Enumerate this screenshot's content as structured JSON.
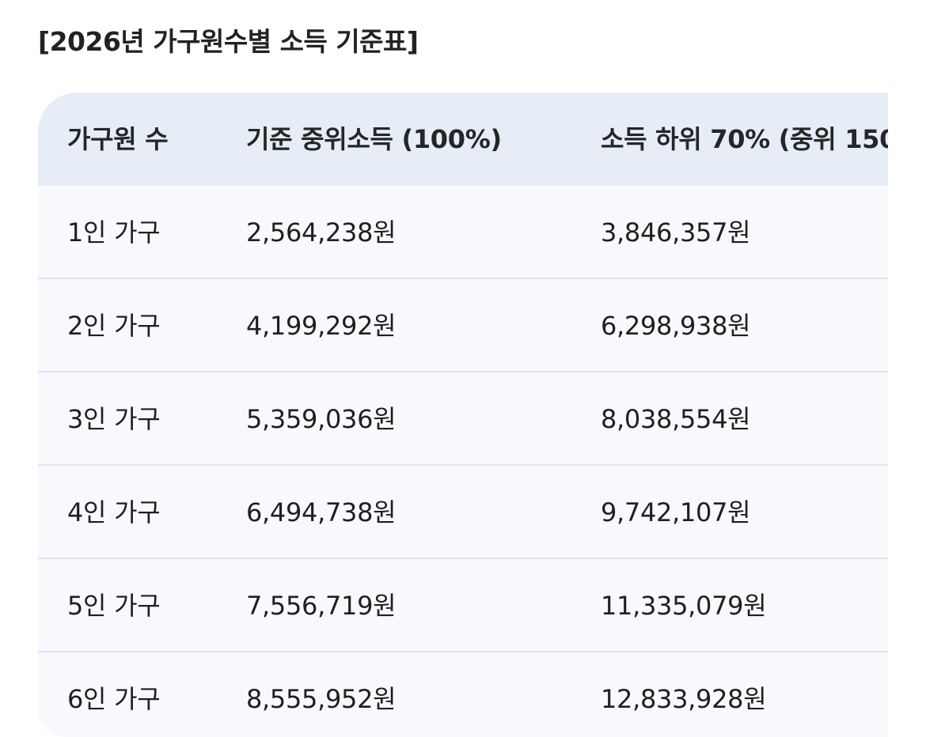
{
  "title": "[2026년 가구원수별 소득 기준표]",
  "table": {
    "headers": [
      "가구원 수",
      "기준 중위소득 (100%)",
      "소득 하위 70% (중위 150"
    ],
    "rows": [
      [
        "1인 가구",
        "2,564,238원",
        "3,846,357원"
      ],
      [
        "2인 가구",
        "4,199,292원",
        "6,298,938원"
      ],
      [
        "3인 가구",
        "5,359,036원",
        "8,038,554원"
      ],
      [
        "4인 가구",
        "6,494,738원",
        "9,742,107원"
      ],
      [
        "5인 가구",
        "7,556,719원",
        "11,335,079원"
      ],
      [
        "6인 가구",
        "8,555,952원",
        "12,833,928원"
      ]
    ]
  },
  "colors": {
    "header_bg": "#e6edf7",
    "body_bg": "#f7f9fd",
    "divider": "#e1e4ea",
    "text": "#1f1f1f"
  }
}
